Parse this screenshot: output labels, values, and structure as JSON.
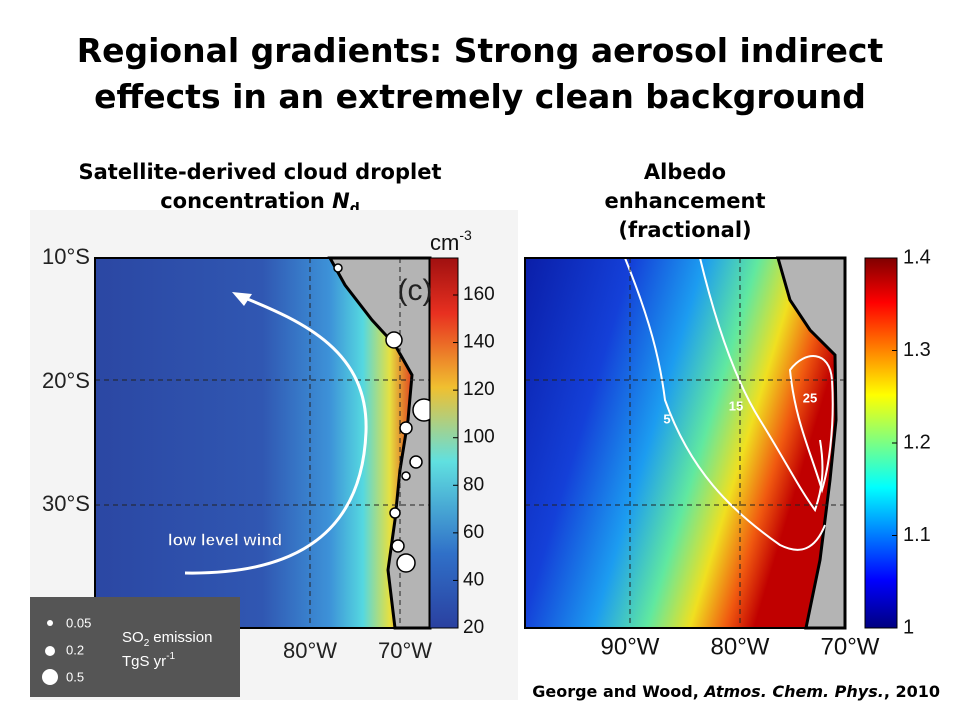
{
  "title": "Regional gradients: Strong aerosol indirect effects in an extremely clean background",
  "left_panel": {
    "heading": {
      "text": "Satellite-derived cloud droplet concentration",
      "symbol": "N",
      "subscript": "d"
    },
    "panel_label": "(c)",
    "unit": {
      "base": "cm",
      "exponent": "-3"
    },
    "colorbar_ticks": [
      20,
      40,
      60,
      80,
      100,
      120,
      140,
      160
    ],
    "lat_labels": [
      "10°S",
      "20°S",
      "30°S"
    ],
    "lon_labels": [
      "80°W",
      "70°W"
    ],
    "annotation": "low level wind",
    "legend": {
      "sizes": [
        0.05,
        0.2,
        0.5
      ],
      "title": {
        "base": "SO",
        "subscript": "2",
        "rest": "emission"
      },
      "units": {
        "base": "TgS yr",
        "exponent": "-1"
      }
    }
  },
  "right_panel": {
    "heading": "Albedo enhancement (fractional)",
    "colorbar_ticks": [
      1,
      1.1,
      1.2,
      1.3,
      1.4
    ],
    "contour_labels": [
      5,
      15,
      25
    ],
    "lon_labels": [
      "90°W",
      "80°W",
      "70°W"
    ]
  },
  "citation": {
    "authors": "George and Wood,",
    "journal": "Atmos. Chem. Phys.",
    "year": ", 2010"
  }
}
